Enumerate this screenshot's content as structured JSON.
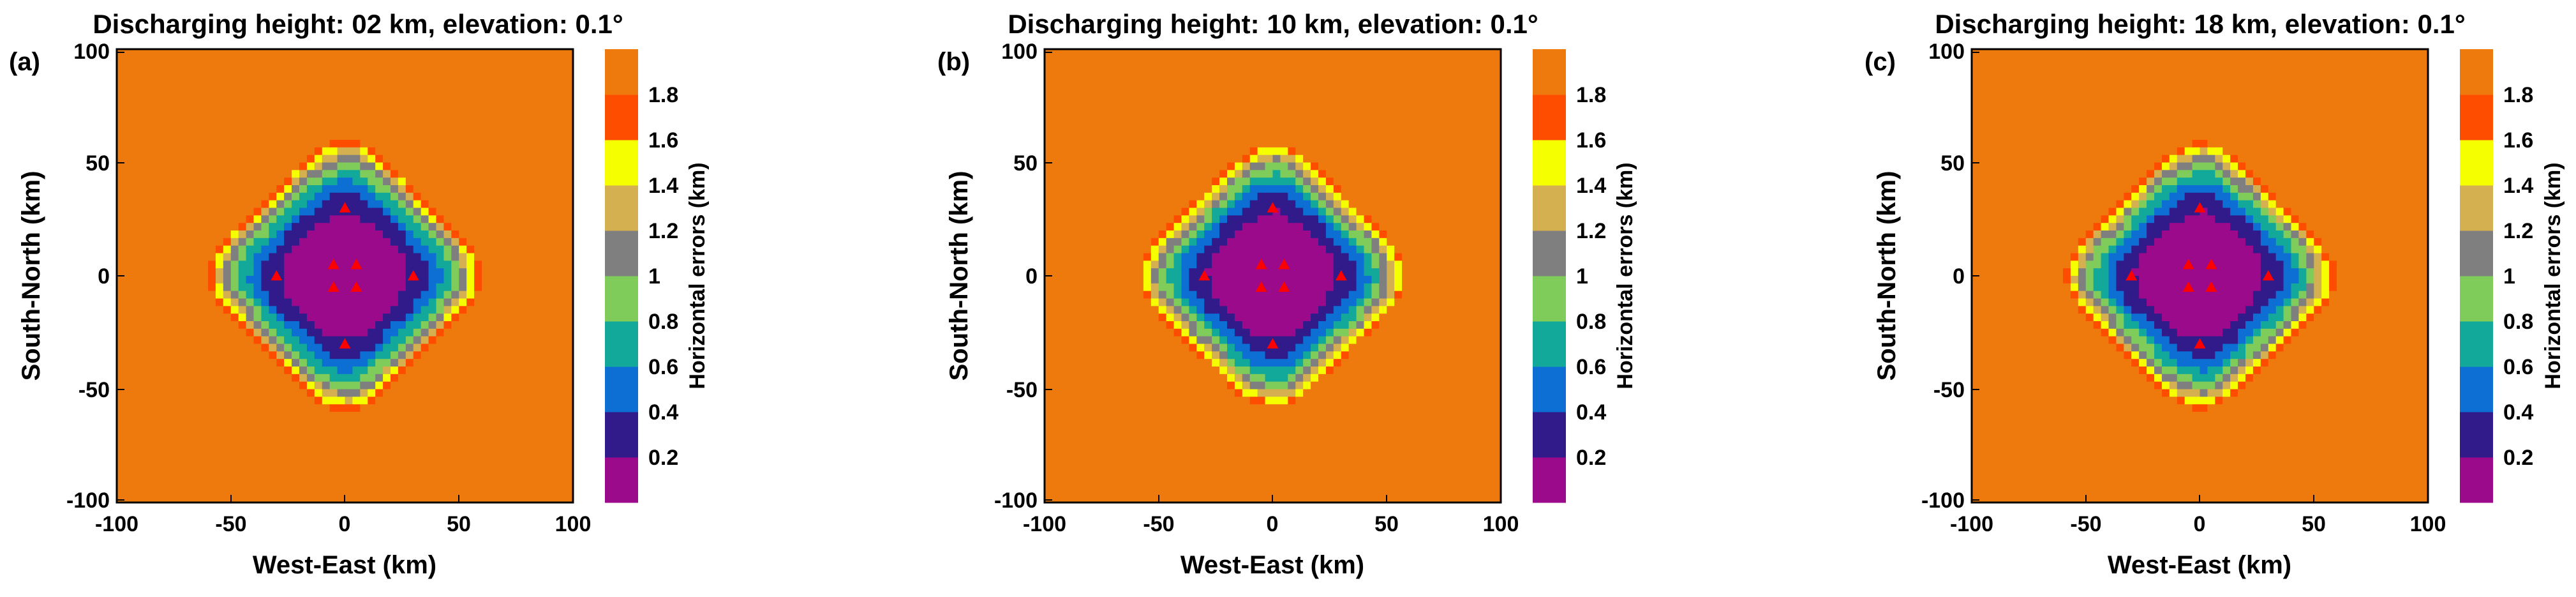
{
  "figure": {
    "colors": [
      "#9b0a8a",
      "#311a8a",
      "#0d6fd3",
      "#12a89a",
      "#7fcc5b",
      "#7f7f7f",
      "#d4b050",
      "#f5ff00",
      "#ff4d00",
      "#ee7a0e"
    ],
    "marker_color": "#ff0000"
  },
  "chart_data": [
    {
      "type": "contour",
      "label": "(a)",
      "title": "Discharging height: 02 km, elevation: 0.1°",
      "xlabel": "West-East (km)",
      "ylabel": "South-North (km)",
      "xlim": [
        -100,
        100
      ],
      "ylim": [
        -100,
        100
      ],
      "xticks": [
        "-100",
        "-50",
        "0",
        "50",
        "100"
      ],
      "yticks": [
        "-100",
        "-50",
        "0",
        "50",
        "100"
      ],
      "colorbar": {
        "label": "Horizontal errors (km)",
        "levels": [
          0,
          0.2,
          0.4,
          0.6,
          0.8,
          1.0,
          1.2,
          1.4,
          1.6,
          1.8,
          2.0
        ],
        "tick_labels": [
          "0.2",
          "0.4",
          "0.6",
          "0.8",
          "1",
          "1.2",
          "1.4",
          "1.6",
          "1.8"
        ]
      },
      "field_params": {
        "a": 0.00018,
        "b": 8.5e-06,
        "c": 9e-07,
        "wobble": 0.045
      },
      "stations": [
        [
          0,
          30
        ],
        [
          -30,
          0
        ],
        [
          30,
          0
        ],
        [
          0,
          -30
        ],
        [
          -5,
          5
        ],
        [
          5,
          5
        ],
        [
          -5,
          -5
        ],
        [
          5,
          -5
        ]
      ]
    },
    {
      "type": "contour",
      "label": "(b)",
      "title": "Discharging height: 10 km, elevation: 0.1°",
      "xlabel": "West-East (km)",
      "ylabel": "South-North (km)",
      "xlim": [
        -100,
        100
      ],
      "ylim": [
        -100,
        100
      ],
      "xticks": [
        "-100",
        "-50",
        "0",
        "50",
        "100"
      ],
      "yticks": [
        "-100",
        "-50",
        "0",
        "50",
        "100"
      ],
      "colorbar": {
        "label": "Horizontal errors (km)",
        "levels": [
          0,
          0.2,
          0.4,
          0.6,
          0.8,
          1.0,
          1.2,
          1.4,
          1.6,
          1.8,
          2.0
        ],
        "tick_labels": [
          "0.2",
          "0.4",
          "0.6",
          "0.8",
          "1",
          "1.2",
          "1.4",
          "1.6",
          "1.8"
        ]
      },
      "field_params": {
        "a": 0.00016,
        "b": 9.5e-06,
        "c": 1.1e-06,
        "wobble": 0.05
      },
      "stations": [
        [
          0,
          30
        ],
        [
          -30,
          0
        ],
        [
          30,
          0
        ],
        [
          0,
          -30
        ],
        [
          -5,
          5
        ],
        [
          5,
          5
        ],
        [
          -5,
          -5
        ],
        [
          5,
          -5
        ]
      ]
    },
    {
      "type": "contour",
      "label": "(c)",
      "title": "Discharging height: 18 km, elevation: 0.1°",
      "xlabel": "West-East (km)",
      "ylabel": "South-North (km)",
      "xlim": [
        -100,
        100
      ],
      "ylim": [
        -100,
        100
      ],
      "xticks": [
        "-100",
        "-50",
        "0",
        "50",
        "100"
      ],
      "yticks": [
        "-100",
        "-50",
        "0",
        "50",
        "100"
      ],
      "colorbar": {
        "label": "Horizontal errors (km)",
        "levels": [
          0,
          0.2,
          0.4,
          0.6,
          0.8,
          1.0,
          1.2,
          1.4,
          1.6,
          1.8,
          2.0
        ],
        "tick_labels": [
          "0.2",
          "0.4",
          "0.6",
          "0.8",
          "1",
          "1.2",
          "1.4",
          "1.6",
          "1.8"
        ]
      },
      "field_params": {
        "a": 0.00017,
        "b": 9e-06,
        "c": 1e-06,
        "wobble": 0.05
      },
      "stations": [
        [
          0,
          30
        ],
        [
          -30,
          0
        ],
        [
          30,
          0
        ],
        [
          0,
          -30
        ],
        [
          -5,
          5
        ],
        [
          5,
          5
        ],
        [
          -5,
          -5
        ],
        [
          5,
          -5
        ]
      ]
    }
  ]
}
